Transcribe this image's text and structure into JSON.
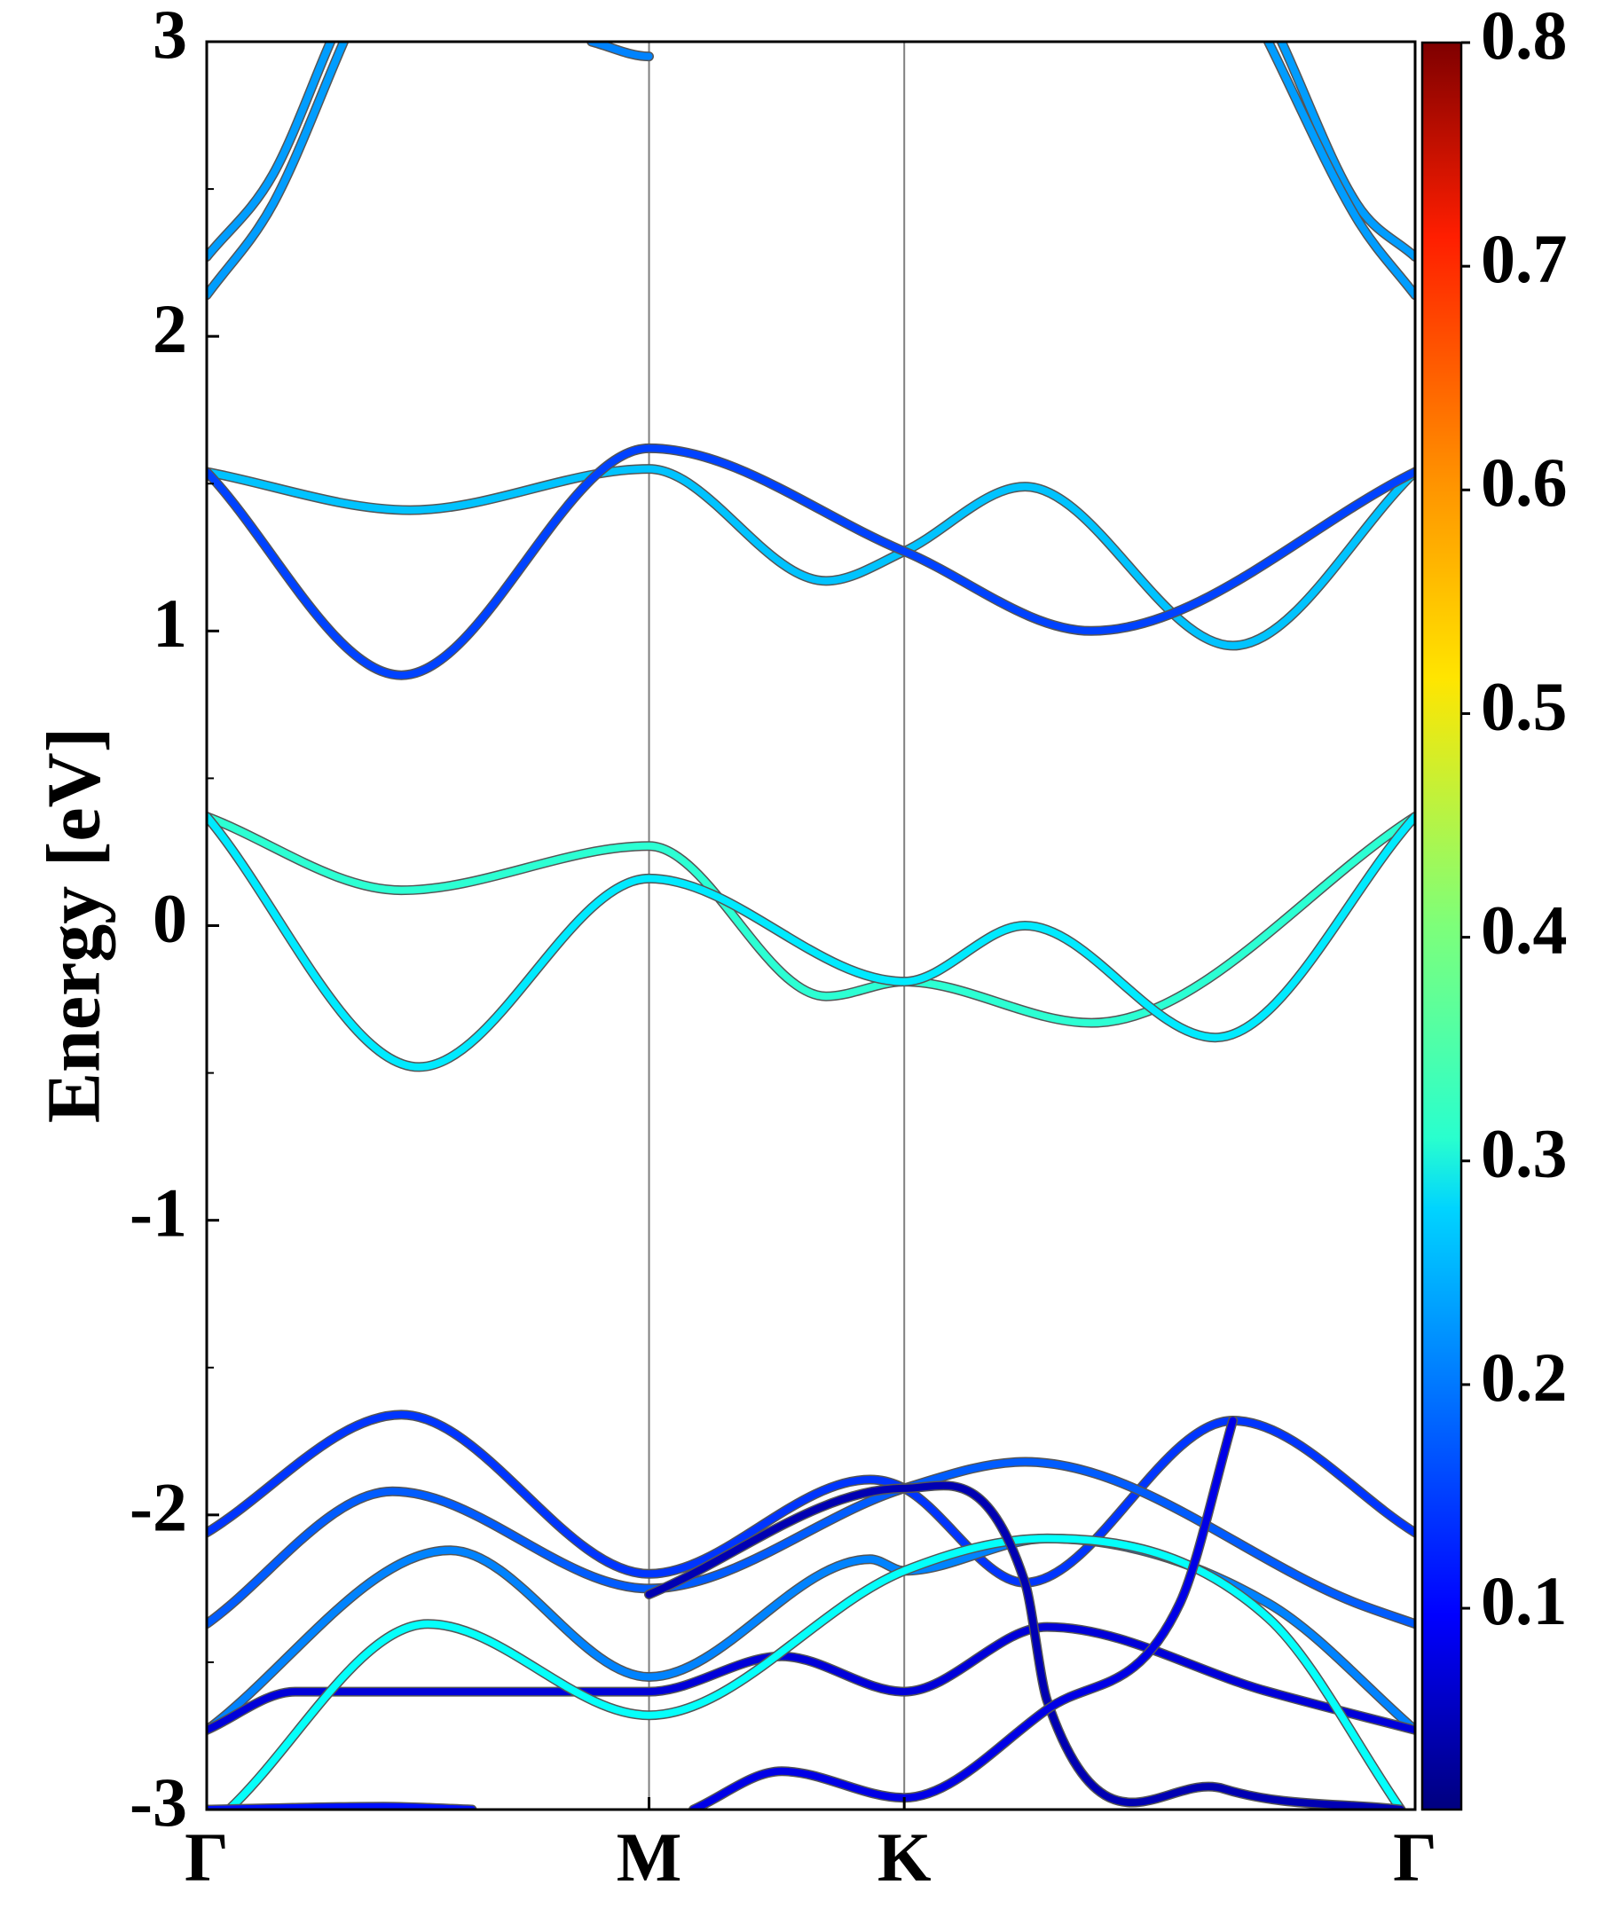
{
  "chart_data": {
    "type": "line",
    "title": "",
    "ylabel": "Energy [eV]",
    "xlabel": "",
    "ylim": [
      -3,
      3
    ],
    "yticks": [
      -3,
      -2,
      -1,
      0,
      1,
      2,
      3
    ],
    "ytick_labels": [
      "-3",
      "-2",
      "-1",
      "0",
      "1",
      "2",
      "3"
    ],
    "x_unit": "k-path (Γ=0, M=1, K=1.577, Γ=2.732)",
    "xlim": [
      0,
      2.732
    ],
    "high_symmetry_points": [
      {
        "label": "Γ",
        "x": 0
      },
      {
        "label": "M",
        "x": 1
      },
      {
        "label": "K",
        "x": 1.577
      },
      {
        "label": "Γ",
        "x": 2.732
      }
    ],
    "colorbar": {
      "colormap": "jet",
      "range": [
        0.01,
        0.8
      ],
      "ticks": [
        0.1,
        0.2,
        0.3,
        0.4,
        0.5,
        0.6,
        0.7,
        0.8
      ],
      "tick_labels": [
        "0.1",
        "0.2",
        "0.3",
        "0.4",
        "0.5",
        "0.6",
        "0.7",
        "0.8"
      ]
    },
    "colors": {
      "vline": "#808080",
      "axis": "#000000",
      "band_outline": "#555555"
    },
    "series": [
      {
        "points": [
          [
            0,
            2.27
          ],
          [
            0.15,
            2.55
          ],
          [
            0.28,
            3.0
          ]
        ],
        "weight": 0.23
      },
      {
        "points": [
          [
            0,
            2.14
          ],
          [
            0.15,
            2.45
          ],
          [
            0.31,
            3.0
          ]
        ],
        "weight": 0.23
      },
      {
        "points": [
          [
            0.87,
            3.0
          ],
          [
            1.0,
            2.95
          ],
          [
            1.0,
            2.95
          ]
        ],
        "weight": 0.21
      },
      {
        "points": [
          [
            2.43,
            3.0
          ],
          [
            2.6,
            2.45
          ],
          [
            2.732,
            2.27
          ]
        ],
        "weight": 0.23
      },
      {
        "points": [
          [
            2.4,
            3.0
          ],
          [
            2.6,
            2.4
          ],
          [
            2.732,
            2.14
          ]
        ],
        "weight": 0.23
      },
      {
        "points": [
          [
            0,
            1.54
          ],
          [
            0.46,
            1.41
          ],
          [
            1.0,
            1.55
          ],
          [
            1.4,
            1.17
          ],
          [
            1.577,
            1.27
          ],
          [
            1.85,
            1.49
          ],
          [
            2.32,
            0.95
          ],
          [
            2.732,
            1.54
          ]
        ],
        "weight": 0.26
      },
      {
        "points": [
          [
            0,
            1.54
          ],
          [
            0.44,
            0.85
          ],
          [
            1.0,
            1.62
          ],
          [
            1.577,
            1.27
          ],
          [
            2.0,
            1.0
          ],
          [
            2.732,
            1.54
          ]
        ],
        "weight": 0.16
      },
      {
        "points": [
          [
            0,
            0.37
          ],
          [
            0.44,
            0.12
          ],
          [
            1.0,
            0.27
          ],
          [
            1.4,
            -0.24
          ],
          [
            1.577,
            -0.19
          ],
          [
            2.0,
            -0.33
          ],
          [
            2.732,
            0.37
          ]
        ],
        "weight": 0.34
      },
      {
        "points": [
          [
            0,
            0.37
          ],
          [
            0.48,
            -0.48
          ],
          [
            1.0,
            0.16
          ],
          [
            1.577,
            -0.19
          ],
          [
            1.85,
            0.0
          ],
          [
            2.28,
            -0.38
          ],
          [
            2.732,
            0.37
          ]
        ],
        "weight": 0.29
      },
      {
        "points": [
          [
            0,
            -2.06
          ],
          [
            0.44,
            -1.66
          ],
          [
            1.0,
            -2.2
          ],
          [
            1.5,
            -1.88
          ],
          [
            1.577,
            -1.91
          ],
          [
            1.85,
            -2.23
          ],
          [
            2.32,
            -1.68
          ],
          [
            2.732,
            -2.06
          ]
        ],
        "weight": 0.15
      },
      {
        "points": [
          [
            0,
            -2.37
          ],
          [
            0.42,
            -1.92
          ],
          [
            1.0,
            -2.25
          ],
          [
            1.577,
            -1.91
          ],
          [
            1.85,
            -1.82
          ],
          [
            2.6,
            -2.3
          ],
          [
            2.732,
            -2.37
          ]
        ],
        "weight": 0.18
      },
      {
        "points": [
          [
            0,
            -2.73
          ],
          [
            0.55,
            -2.12
          ],
          [
            1.0,
            -2.55
          ],
          [
            1.5,
            -2.15
          ],
          [
            1.577,
            -2.19
          ],
          [
            1.9,
            -2.08
          ],
          [
            2.4,
            -2.3
          ],
          [
            2.732,
            -2.73
          ]
        ],
        "weight": 0.21
      },
      {
        "points": [
          [
            0,
            -2.73
          ],
          [
            0.2,
            -2.6
          ],
          [
            1.0,
            -2.6
          ],
          [
            1.3,
            -2.48
          ],
          [
            1.577,
            -2.6
          ],
          [
            1.9,
            -2.38
          ],
          [
            2.4,
            -2.6
          ],
          [
            2.732,
            -2.73
          ]
        ],
        "weight": 0.08
      },
      {
        "points": [
          [
            0.05,
            -3.0
          ],
          [
            0.5,
            -2.37
          ],
          [
            1.0,
            -2.68
          ],
          [
            1.577,
            -2.19
          ],
          [
            1.9,
            -2.08
          ],
          [
            2.4,
            -2.35
          ],
          [
            2.7,
            -3.0
          ]
        ],
        "weight": 0.31
      },
      {
        "points": [
          [
            1.0,
            -2.27
          ],
          [
            1.577,
            -1.91
          ],
          [
            1.85,
            -2.23
          ],
          [
            1.9,
            -2.63
          ],
          [
            2.3,
            -2.93
          ],
          [
            2.7,
            -3.0
          ]
        ],
        "weight": 0.05
      },
      {
        "points": [
          [
            0,
            -3.0
          ],
          [
            0.4,
            -2.99
          ],
          [
            0.6,
            -3.0
          ]
        ],
        "weight": 0.12
      },
      {
        "points": [
          [
            1.1,
            -3.0
          ],
          [
            1.3,
            -2.87
          ],
          [
            1.577,
            -2.96
          ],
          [
            1.9,
            -2.66
          ],
          [
            2.2,
            -2.3
          ],
          [
            2.32,
            -1.68
          ]
        ],
        "weight": 0.09
      }
    ]
  }
}
